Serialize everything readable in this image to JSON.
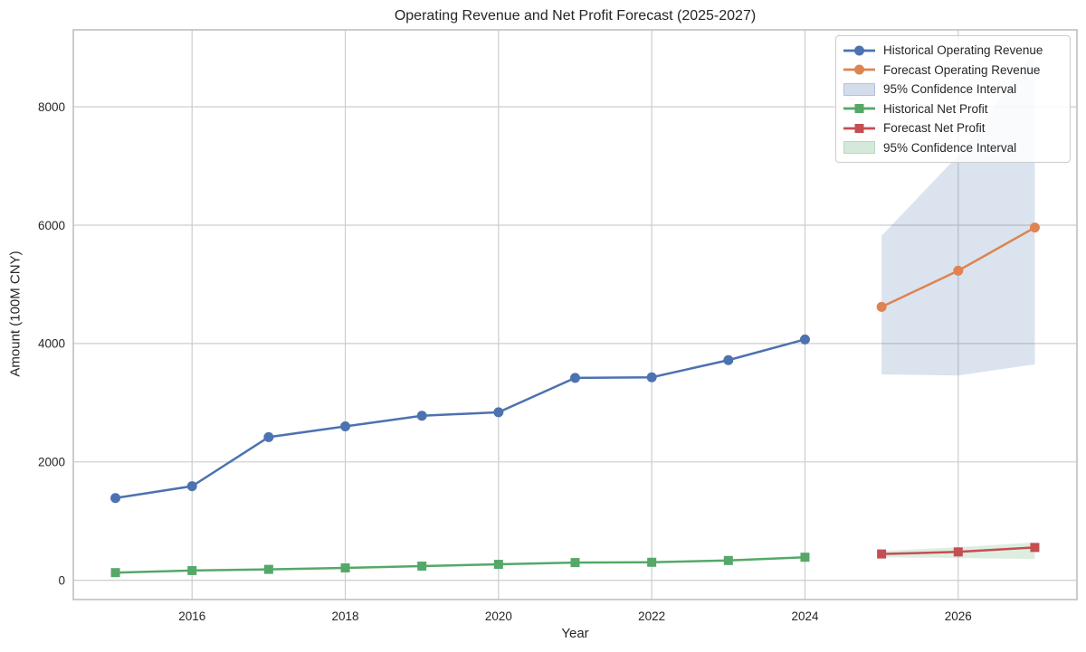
{
  "chart_data": {
    "type": "line",
    "title": "Operating Revenue and Net Profit Forecast (2025-2027)",
    "xlabel": "Year",
    "ylabel": "Amount (100M CNY)",
    "xlim": [
      2014.45,
      2027.55
    ],
    "ylim": [
      -325,
      9300
    ],
    "x_ticks": [
      2016,
      2018,
      2020,
      2022,
      2024,
      2026
    ],
    "y_ticks": [
      0,
      2000,
      4000,
      6000,
      8000
    ],
    "grid": true,
    "grid_color": "#cdcdcd",
    "spine_color": "#bfbfbf",
    "legend_position": "upper right",
    "series": [
      {
        "name": "Historical Operating Revenue",
        "kind": "line",
        "color": "#4C72B0",
        "marker": "circle",
        "x": [
          2015,
          2016,
          2017,
          2018,
          2019,
          2020,
          2021,
          2022,
          2023,
          2024
        ],
        "values": [
          1390,
          1590,
          2420,
          2600,
          2780,
          2840,
          3420,
          3430,
          3720,
          4070
        ]
      },
      {
        "name": "Forecast Operating Revenue",
        "kind": "line",
        "color": "#DD8452",
        "marker": "circle",
        "x": [
          2025,
          2026,
          2027
        ],
        "values": [
          4620,
          5230,
          5960
        ]
      },
      {
        "name": "95% Confidence Interval",
        "kind": "band",
        "color": "#4C72B0",
        "opacity": 0.2,
        "x": [
          2025,
          2026,
          2027
        ],
        "lower": [
          3480,
          3460,
          3650
        ],
        "upper": [
          5820,
          7180,
          8930
        ]
      },
      {
        "name": "Historical Net Profit",
        "kind": "line",
        "color": "#55A868",
        "marker": "square",
        "x": [
          2015,
          2016,
          2017,
          2018,
          2019,
          2020,
          2021,
          2022,
          2023,
          2024
        ],
        "values": [
          130,
          165,
          185,
          210,
          240,
          270,
          300,
          305,
          335,
          390
        ]
      },
      {
        "name": "Forecast Net Profit",
        "kind": "line",
        "color": "#C44E52",
        "marker": "square",
        "x": [
          2025,
          2026,
          2027
        ],
        "values": [
          445,
          480,
          555
        ]
      },
      {
        "name": "95% Confidence Interval",
        "kind": "band",
        "color": "#55A868",
        "opacity": 0.2,
        "x": [
          2025,
          2026,
          2027
        ],
        "lower": [
          390,
          375,
          360
        ],
        "upper": [
          495,
          560,
          640
        ]
      }
    ]
  }
}
